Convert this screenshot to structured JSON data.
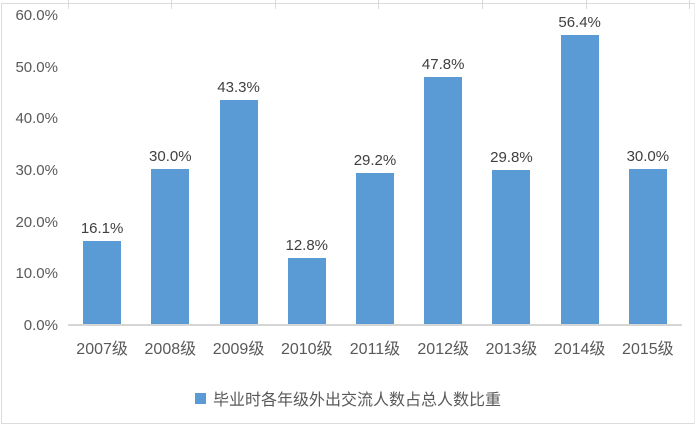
{
  "chart_data": {
    "type": "bar",
    "title": "",
    "xlabel": "",
    "ylabel": "",
    "categories": [
      "2007级",
      "2008级",
      "2009级",
      "2010级",
      "2011级",
      "2012级",
      "2013级",
      "2014级",
      "2015级"
    ],
    "values": [
      16.1,
      30.0,
      43.3,
      12.8,
      29.2,
      47.8,
      29.8,
      56.4,
      30.0
    ],
    "value_labels": [
      "16.1%",
      "30.0%",
      "43.3%",
      "12.8%",
      "29.2%",
      "47.8%",
      "29.8%",
      "56.4%",
      "30.0%"
    ],
    "ylim": [
      0,
      60
    ],
    "ytick_labels": [
      "60.0%",
      "50.0%",
      "40.0%",
      "30.0%",
      "20.0%",
      "10.0%",
      "0.0%"
    ],
    "grid": "off",
    "legend_position": "bottom",
    "series": [
      {
        "name": "毕业时各年级外出交流人数占总人数比重",
        "values": [
          16.1,
          30.0,
          43.3,
          12.8,
          29.2,
          47.8,
          29.8,
          56.4,
          30.0
        ]
      }
    ],
    "bar_color": "#5b9bd5"
  },
  "legend": {
    "label": "毕业时各年级外出交流人数占总人数比重"
  },
  "colors": {
    "bar": "#5b9bd5",
    "axis_line": "#d6d6d6",
    "frame_border": "#dcdcdc",
    "data_label_text": "#404040",
    "axis_label_text": "#595959"
  }
}
